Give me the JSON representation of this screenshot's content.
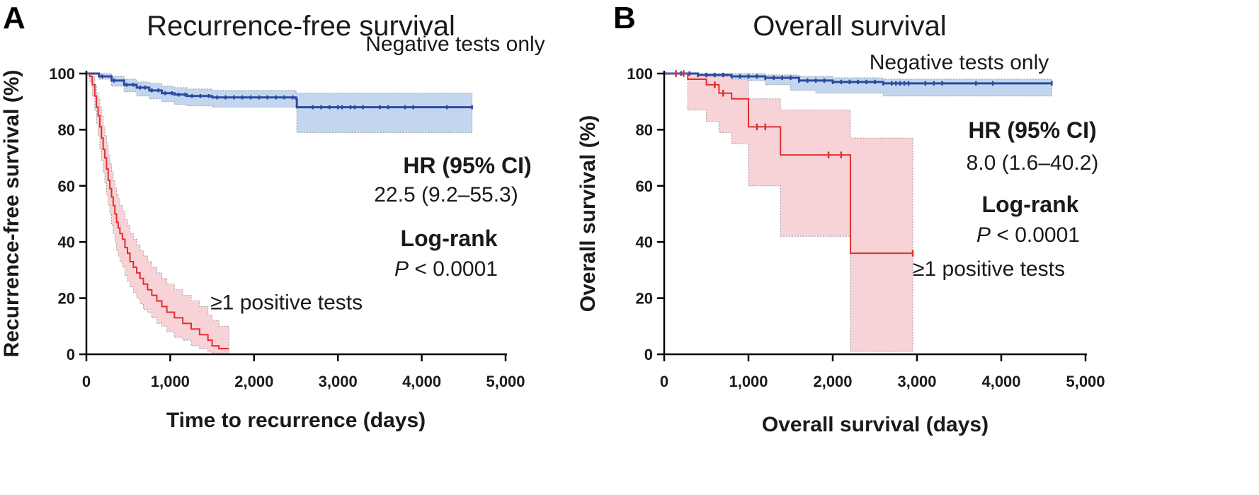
{
  "figure": {
    "panels": [
      {
        "letter": "A",
        "title": "Recurrence-free survival",
        "hr_heading": "HR (95% CI)",
        "hr_value": "22.5 (9.2–55.3)",
        "logrank_heading": "Log-rank",
        "p_letter": "P",
        "p_rest": " < 0.0001"
      },
      {
        "letter": "B",
        "title": "Overall survival",
        "hr_heading": "HR (95% CI)",
        "hr_value": "8.0 (1.6–40.2)",
        "logrank_heading": "Log-rank",
        "p_letter": "P",
        "p_rest": " < 0.0001"
      }
    ]
  },
  "colors": {
    "negative_line": "#2c4a9e",
    "negative_band": "#c3d6ef",
    "positive_line": "#e03030",
    "positive_band": "#f7d3d7",
    "band_edge": "#9a9a9a"
  },
  "chart_data": [
    {
      "type": "line",
      "subtype": "kaplan-meier",
      "title": "Recurrence-free survival",
      "xlabel": "Time to recurrence (days)",
      "ylabel": "Recurrence-free survival (%)",
      "xlim": [
        0,
        5000
      ],
      "ylim": [
        0,
        100
      ],
      "x_ticks": [
        0,
        1000,
        2000,
        3000,
        4000,
        5000
      ],
      "x_tick_labels": [
        "0",
        "1,000",
        "2,000",
        "3,000",
        "4,000",
        "5,000"
      ],
      "y_ticks": [
        0,
        20,
        40,
        60,
        80,
        100
      ],
      "y_tick_labels": [
        "0",
        "20",
        "40",
        "60",
        "80",
        "100"
      ],
      "series": [
        {
          "name": "Negative tests only",
          "label": "Negative tests only",
          "label_at": [
            4400,
            108
          ],
          "label_anchor": "middle",
          "color_key": "negative",
          "steps": [
            [
              0,
              100
            ],
            [
              150,
              99
            ],
            [
              300,
              97.5
            ],
            [
              450,
              96
            ],
            [
              600,
              95
            ],
            [
              750,
              94
            ],
            [
              900,
              93
            ],
            [
              1050,
              92.5
            ],
            [
              1200,
              92
            ],
            [
              1500,
              91.5
            ],
            [
              2500,
              91
            ],
            [
              2510,
              88
            ],
            [
              4600,
              88
            ]
          ],
          "ci_lower": [
            [
              0,
              100
            ],
            [
              150,
              98
            ],
            [
              300,
              95.5
            ],
            [
              450,
              93.5
            ],
            [
              600,
              92
            ],
            [
              750,
              91
            ],
            [
              900,
              90
            ],
            [
              1050,
              89
            ],
            [
              1200,
              88.5
            ],
            [
              1500,
              88
            ],
            [
              2500,
              87.5
            ],
            [
              2510,
              79
            ],
            [
              4600,
              79
            ]
          ],
          "ci_upper": [
            [
              0,
              100
            ],
            [
              150,
              100
            ],
            [
              300,
              99
            ],
            [
              450,
              98
            ],
            [
              600,
              97
            ],
            [
              750,
              96.5
            ],
            [
              900,
              95.5
            ],
            [
              1050,
              95
            ],
            [
              1200,
              94.5
            ],
            [
              1500,
              94
            ],
            [
              2500,
              93.5
            ],
            [
              2510,
              93
            ],
            [
              4600,
              93
            ]
          ],
          "censor_x": [
            190,
            330,
            480,
            560,
            640,
            700,
            780,
            860,
            940,
            1020,
            1100,
            1180,
            1260,
            1360,
            1460,
            1560,
            1660,
            1760,
            1860,
            1960,
            2060,
            2160,
            2260,
            2360,
            2460,
            2700,
            2800,
            2900,
            3000,
            3050,
            3150,
            3200,
            3300,
            3500,
            3600,
            3800,
            3900,
            4300,
            4600
          ],
          "censor_len": 0.7,
          "end_x": 4600
        },
        {
          "name": "≥1 positive tests",
          "label": "≥1 positive tests",
          "label_at": [
            1480,
            16
          ],
          "label_anchor": "start",
          "color_key": "positive",
          "steps": [
            [
              0,
              100
            ],
            [
              40,
              99
            ],
            [
              70,
              96
            ],
            [
              100,
              92
            ],
            [
              120,
              88
            ],
            [
              140,
              85
            ],
            [
              160,
              81
            ],
            [
              180,
              77
            ],
            [
              200,
              73
            ],
            [
              220,
              70
            ],
            [
              240,
              66
            ],
            [
              260,
              62
            ],
            [
              280,
              59
            ],
            [
              300,
              56
            ],
            [
              320,
              53
            ],
            [
              340,
              50
            ],
            [
              360,
              47
            ],
            [
              380,
              45
            ],
            [
              400,
              43
            ],
            [
              430,
              41
            ],
            [
              460,
              38
            ],
            [
              490,
              36
            ],
            [
              520,
              33
            ],
            [
              560,
              31
            ],
            [
              600,
              29
            ],
            [
              640,
              27
            ],
            [
              680,
              25
            ],
            [
              730,
              23
            ],
            [
              780,
              21
            ],
            [
              840,
              19
            ],
            [
              900,
              17
            ],
            [
              960,
              15
            ],
            [
              1050,
              13
            ],
            [
              1150,
              11
            ],
            [
              1250,
              9
            ],
            [
              1350,
              7
            ],
            [
              1450,
              5
            ],
            [
              1500,
              3
            ],
            [
              1580,
              2
            ],
            [
              1700,
              2
            ]
          ],
          "ci_lower": [
            [
              0,
              100
            ],
            [
              40,
              97
            ],
            [
              70,
              92
            ],
            [
              100,
              87
            ],
            [
              120,
              82
            ],
            [
              140,
              78
            ],
            [
              160,
              73
            ],
            [
              180,
              69
            ],
            [
              200,
              65
            ],
            [
              220,
              61
            ],
            [
              240,
              57
            ],
            [
              260,
              53
            ],
            [
              280,
              50
            ],
            [
              300,
              46
            ],
            [
              320,
              43
            ],
            [
              340,
              40
            ],
            [
              360,
              37
            ],
            [
              380,
              35
            ],
            [
              400,
              33
            ],
            [
              430,
              31
            ],
            [
              460,
              28
            ],
            [
              490,
              26
            ],
            [
              520,
              24
            ],
            [
              560,
              22
            ],
            [
              600,
              20
            ],
            [
              640,
              18
            ],
            [
              680,
              16
            ],
            [
              730,
              15
            ],
            [
              780,
              13
            ],
            [
              840,
              11
            ],
            [
              900,
              10
            ],
            [
              960,
              8
            ],
            [
              1050,
              6
            ],
            [
              1150,
              5
            ],
            [
              1250,
              3
            ],
            [
              1350,
              2
            ],
            [
              1450,
              1
            ],
            [
              1500,
              0
            ],
            [
              1700,
              0
            ]
          ],
          "ci_upper": [
            [
              0,
              100
            ],
            [
              40,
              100
            ],
            [
              70,
              99
            ],
            [
              100,
              96
            ],
            [
              120,
              93
            ],
            [
              140,
              91
            ],
            [
              160,
              88
            ],
            [
              180,
              85
            ],
            [
              200,
              81
            ],
            [
              220,
              78
            ],
            [
              240,
              75
            ],
            [
              260,
              71
            ],
            [
              280,
              68
            ],
            [
              300,
              65
            ],
            [
              320,
              62
            ],
            [
              340,
              59
            ],
            [
              360,
              57
            ],
            [
              380,
              55
            ],
            [
              400,
              53
            ],
            [
              430,
              51
            ],
            [
              460,
              48
            ],
            [
              490,
              46
            ],
            [
              520,
              43
            ],
            [
              560,
              41
            ],
            [
              600,
              39
            ],
            [
              640,
              37
            ],
            [
              680,
              35
            ],
            [
              730,
              33
            ],
            [
              780,
              31
            ],
            [
              840,
              29
            ],
            [
              900,
              27
            ],
            [
              960,
              25
            ],
            [
              1050,
              23
            ],
            [
              1150,
              21
            ],
            [
              1250,
              19
            ],
            [
              1350,
              17
            ],
            [
              1450,
              14
            ],
            [
              1500,
              12
            ],
            [
              1580,
              10
            ],
            [
              1700,
              10
            ]
          ],
          "censor_x": [],
          "censor_len": 0,
          "end_x": 1700
        }
      ]
    },
    {
      "type": "line",
      "subtype": "kaplan-meier",
      "title": "Overall survival",
      "xlabel": "Overall survival (days)",
      "ylabel": "Overall survival (%)",
      "xlim": [
        0,
        5000
      ],
      "ylim": [
        0,
        100
      ],
      "x_ticks": [
        0,
        1000,
        2000,
        3000,
        4000,
        5000
      ],
      "x_tick_labels": [
        "0",
        "1,000",
        "2,000",
        "3,000",
        "4,000",
        "5,000"
      ],
      "y_ticks": [
        0,
        20,
        40,
        60,
        80,
        100
      ],
      "y_tick_labels": [
        "0",
        "20",
        "40",
        "60",
        "80",
        "100"
      ],
      "series": [
        {
          "name": "Negative tests only",
          "label": "Negative tests only",
          "label_at": [
            3500,
            101.5
          ],
          "label_anchor": "middle",
          "color_key": "negative",
          "steps": [
            [
              0,
              100
            ],
            [
              400,
              99.5
            ],
            [
              800,
              99
            ],
            [
              1200,
              98.5
            ],
            [
              1600,
              97.5
            ],
            [
              2000,
              97
            ],
            [
              2600,
              96.5
            ],
            [
              4600,
              96.5
            ]
          ],
          "ci_lower": [
            [
              0,
              100
            ],
            [
              400,
              98.5
            ],
            [
              800,
              97.5
            ],
            [
              1200,
              96
            ],
            [
              1500,
              94
            ],
            [
              1800,
              93
            ],
            [
              2600,
              92
            ],
            [
              4600,
              92
            ]
          ],
          "ci_upper": [
            [
              0,
              100
            ],
            [
              400,
              100
            ],
            [
              800,
              100
            ],
            [
              1200,
              99.5
            ],
            [
              1600,
              99
            ],
            [
              2000,
              98.5
            ],
            [
              2600,
              98
            ],
            [
              4600,
              98
            ]
          ],
          "censor_x": [
            200,
            300,
            400,
            500,
            600,
            700,
            800,
            900,
            1000,
            1100,
            1200,
            1300,
            1400,
            1500,
            1600,
            1700,
            1800,
            1900,
            2000,
            2100,
            2200,
            2300,
            2400,
            2500,
            2600,
            2700,
            2750,
            2800,
            2850,
            2900,
            3100,
            3200,
            3300,
            3700,
            3900,
            4600
          ],
          "censor_len": 0.8,
          "end_x": 4600
        },
        {
          "name": "≥1 positive tests",
          "label": "≥1 positive tests",
          "label_at": [
            2950,
            28
          ],
          "label_anchor": "start",
          "color_key": "positive",
          "steps": [
            [
              0,
              100
            ],
            [
              280,
              98
            ],
            [
              500,
              96
            ],
            [
              650,
              93
            ],
            [
              800,
              91
            ],
            [
              1000,
              81
            ],
            [
              1150,
              81
            ],
            [
              1380,
              71
            ],
            [
              2200,
              71
            ],
            [
              2210,
              36
            ],
            [
              2950,
              36
            ]
          ],
          "ci_lower": [
            [
              0,
              100
            ],
            [
              280,
              87
            ],
            [
              500,
              83
            ],
            [
              650,
              79
            ],
            [
              800,
              75
            ],
            [
              1000,
              60
            ],
            [
              1380,
              42
            ],
            [
              2200,
              42
            ],
            [
              2210,
              1
            ],
            [
              2950,
              1
            ]
          ],
          "ci_upper": [
            [
              0,
              100
            ],
            [
              280,
              100
            ],
            [
              500,
              99
            ],
            [
              650,
              99
            ],
            [
              800,
              98
            ],
            [
              1000,
              91
            ],
            [
              1380,
              87
            ],
            [
              2200,
              87
            ],
            [
              2210,
              77
            ],
            [
              2950,
              77
            ]
          ],
          "censor_x": [
            140,
            230,
            600,
            700,
            1100,
            1200,
            1950,
            2100,
            2950
          ],
          "censor_len": 1.2,
          "end_x": 2950
        }
      ]
    }
  ]
}
